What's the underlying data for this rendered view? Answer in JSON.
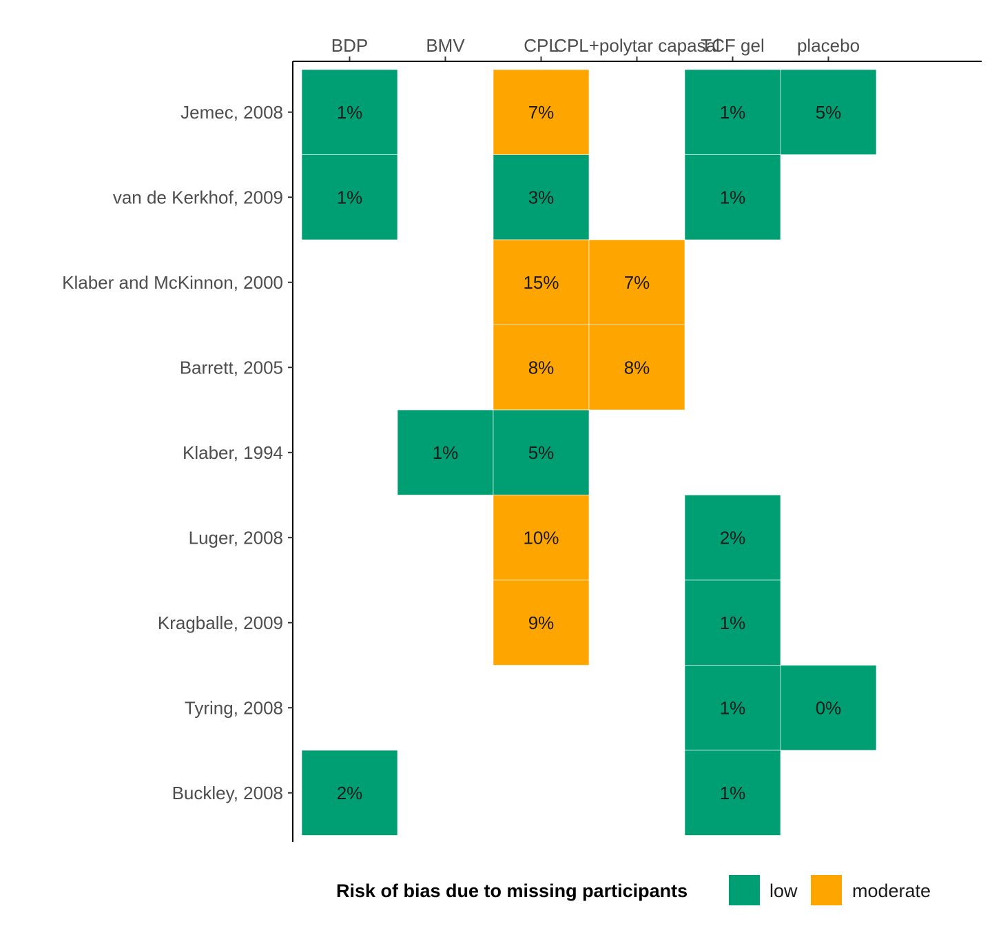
{
  "colors": {
    "low": "#009E73",
    "moderate": "#FFA500"
  },
  "chart_data": {
    "type": "heatmap",
    "columns": [
      "BDP",
      "BMV",
      "CPL",
      "CPL+polytar capasal",
      "TCF gel",
      "placebo"
    ],
    "rows": [
      "Jemec, 2008",
      "van de Kerkhof, 2009",
      "Klaber and McKinnon, 2000",
      "Barrett, 2005",
      "Klaber, 1994",
      "Luger, 2008",
      "Kragballe, 2009",
      "Tyring, 2008",
      "Buckley, 2008"
    ],
    "cells": [
      {
        "row": "Jemec, 2008",
        "col": "BDP",
        "value": "1%",
        "risk": "low"
      },
      {
        "row": "Jemec, 2008",
        "col": "CPL",
        "value": "7%",
        "risk": "moderate"
      },
      {
        "row": "Jemec, 2008",
        "col": "TCF gel",
        "value": "1%",
        "risk": "low"
      },
      {
        "row": "Jemec, 2008",
        "col": "placebo",
        "value": "5%",
        "risk": "low"
      },
      {
        "row": "van de Kerkhof, 2009",
        "col": "BDP",
        "value": "1%",
        "risk": "low"
      },
      {
        "row": "van de Kerkhof, 2009",
        "col": "CPL",
        "value": "3%",
        "risk": "low"
      },
      {
        "row": "van de Kerkhof, 2009",
        "col": "TCF gel",
        "value": "1%",
        "risk": "low"
      },
      {
        "row": "Klaber and McKinnon, 2000",
        "col": "CPL",
        "value": "15%",
        "risk": "moderate"
      },
      {
        "row": "Klaber and McKinnon, 2000",
        "col": "CPL+polytar capasal",
        "value": "7%",
        "risk": "moderate"
      },
      {
        "row": "Barrett, 2005",
        "col": "CPL",
        "value": "8%",
        "risk": "moderate"
      },
      {
        "row": "Barrett, 2005",
        "col": "BMV",
        "value": "8%",
        "risk": "moderate",
        "note_col_index": 3
      },
      {
        "row": "Klaber, 1994",
        "col": "BMV",
        "value": "1%",
        "risk": "low"
      },
      {
        "row": "Klaber, 1994",
        "col": "CPL",
        "value": "5%",
        "risk": "low"
      },
      {
        "row": "Luger, 2008",
        "col": "CPL",
        "value": "10%",
        "risk": "moderate"
      },
      {
        "row": "Luger, 2008",
        "col": "TCF gel",
        "value": "2%",
        "risk": "low"
      },
      {
        "row": "Kragballe, 2009",
        "col": "CPL",
        "value": "9%",
        "risk": "moderate"
      },
      {
        "row": "Kragballe, 2009",
        "col": "TCF gel",
        "value": "1%",
        "risk": "low"
      },
      {
        "row": "Tyring, 2008",
        "col": "TCF gel",
        "value": "1%",
        "risk": "low"
      },
      {
        "row": "Tyring, 2008",
        "col": "placebo",
        "value": "0%",
        "risk": "low"
      },
      {
        "row": "Buckley, 2008",
        "col": "BDP",
        "value": "2%",
        "risk": "low"
      },
      {
        "row": "Buckley, 2008",
        "col": "TCF gel",
        "value": "1%",
        "risk": "low"
      }
    ],
    "legend": {
      "title": "Risk of bias due to missing participants",
      "entries": [
        {
          "key": "low",
          "label": "low"
        },
        {
          "key": "moderate",
          "label": "moderate"
        }
      ],
      "position": "bottom"
    },
    "x_axis_position": "top",
    "grid": false
  }
}
